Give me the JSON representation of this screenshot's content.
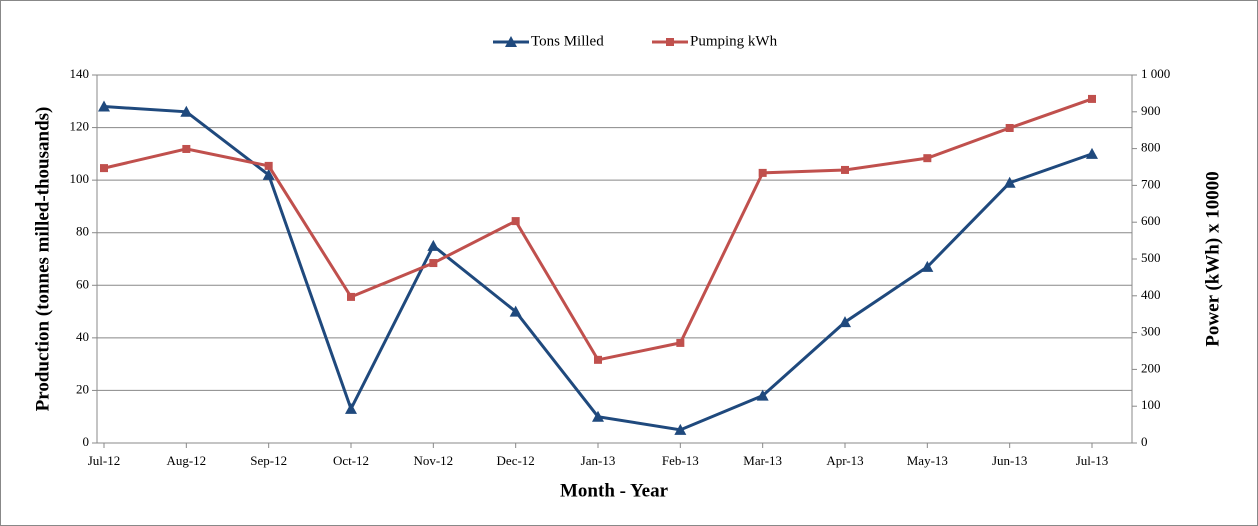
{
  "chart_data": {
    "type": "line",
    "x_label": "Month - Year",
    "y_label": "Production (tonnes milled-thousands)",
    "y2_label": "Power (kWh) x 10000",
    "categories": [
      "Jul-12",
      "Aug-12",
      "Sep-12",
      "Oct-12",
      "Nov-12",
      "Dec-12",
      "Jan-13",
      "Feb-13",
      "Mar-13",
      "Apr-13",
      "May-13",
      "Jun-13",
      "Jul-13"
    ],
    "series": [
      {
        "name": "Tons Milled",
        "color": "#1f497d",
        "marker": "triangle",
        "values": [
          128,
          126,
          102,
          13,
          75,
          50,
          10,
          5,
          18,
          46,
          67,
          99,
          110
        ]
      },
      {
        "name": "Pumping kWh",
        "color": "#c0504d",
        "marker": "square",
        "axis": "y2",
        "values": [
          747,
          799,
          753,
          397,
          489,
          603,
          226,
          272,
          734,
          742,
          774,
          856,
          935
        ]
      }
    ],
    "ylim": [
      0,
      140
    ],
    "yticks": [
      0,
      20,
      40,
      60,
      80,
      100,
      120,
      140
    ],
    "y2lim": [
      0,
      1000
    ],
    "y2ticks": [
      0,
      100,
      200,
      300,
      400,
      500,
      600,
      700,
      800,
      900,
      {
        "value": 1000,
        "label": "1 000"
      }
    ],
    "grid": true,
    "legend": "top"
  }
}
